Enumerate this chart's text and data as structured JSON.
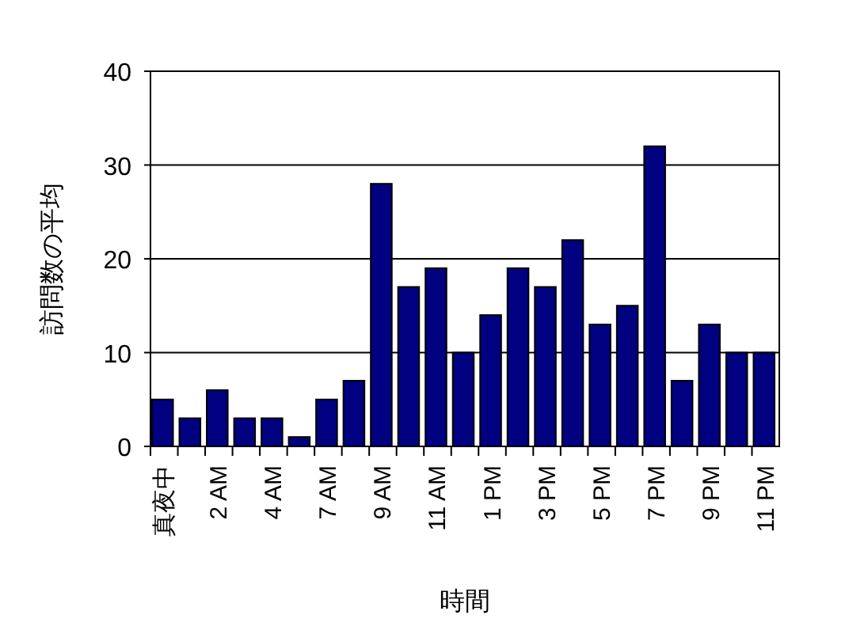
{
  "chart_data": {
    "type": "bar",
    "xlabel": "時間",
    "ylabel": "訪問数の平均",
    "categories": [
      "真夜中",
      null,
      "2 AM",
      null,
      "4 AM",
      null,
      "7 AM",
      null,
      "9 AM",
      null,
      "11 AM",
      null,
      "1 PM",
      null,
      "3 PM",
      null,
      "5 PM",
      null,
      "7 PM",
      null,
      "9 PM",
      null,
      "11 PM"
    ],
    "values": [
      5,
      3,
      6,
      3,
      3,
      1,
      5,
      7,
      28,
      17,
      19,
      10,
      14,
      19,
      17,
      22,
      13,
      15,
      32,
      7,
      13,
      10,
      10
    ],
    "color": "#000080",
    "ylim": [
      0,
      40
    ],
    "yticks": [
      0,
      10,
      20,
      30,
      40
    ],
    "grid": "y"
  }
}
